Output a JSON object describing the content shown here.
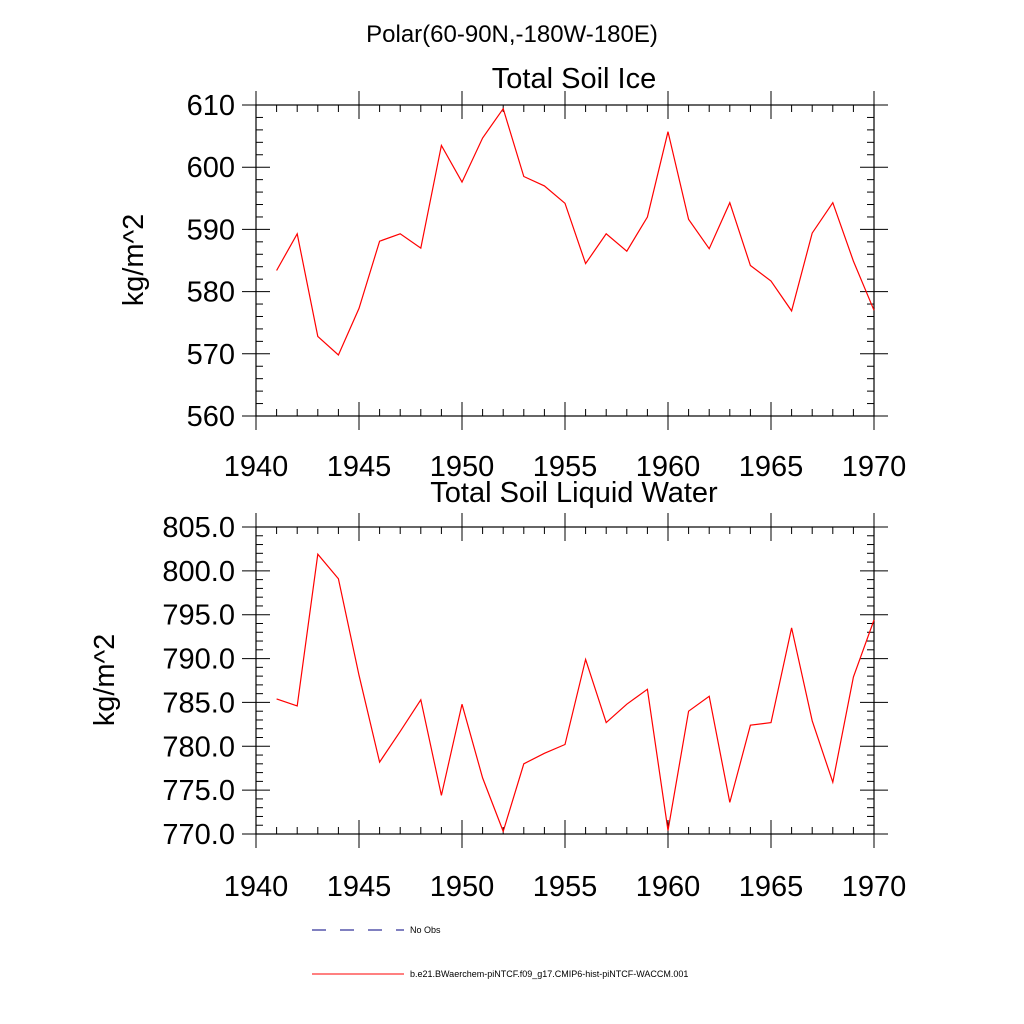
{
  "suptitle": "Polar(60-90N,-180W-180E)",
  "legend": {
    "items": [
      {
        "label": "No Obs",
        "color": "#000080",
        "dash": true
      },
      {
        "label": "b.e21.BWaerchem-piNTCF.f09_g17.CMIP6-hist-piNTCF-WACCM.001",
        "color": "#ff0000",
        "dash": false
      }
    ]
  },
  "chart_data": [
    {
      "type": "line",
      "title": "Total Soil Ice",
      "ylabel": "kg/m^2",
      "xlabel": "",
      "xlim": [
        1940,
        1970
      ],
      "ylim": [
        560,
        610
      ],
      "xticks": [
        1940,
        1945,
        1950,
        1955,
        1960,
        1965,
        1970
      ],
      "xtick_labels": [
        "1940",
        "1945",
        "1950",
        "1955",
        "1960",
        "1965",
        "1970"
      ],
      "yticks": [
        560,
        570,
        580,
        590,
        600,
        610
      ],
      "ytick_labels": [
        "560",
        "570",
        "580",
        "590",
        "600",
        "610"
      ],
      "grid": false,
      "series": [
        {
          "color": "#ff0000",
          "x": [
            1941,
            1942,
            1943,
            1944,
            1945,
            1946,
            1947,
            1948,
            1949,
            1950,
            1951,
            1952,
            1953,
            1954,
            1955,
            1956,
            1957,
            1958,
            1959,
            1960,
            1961,
            1962,
            1963,
            1964,
            1965,
            1966,
            1967,
            1968,
            1969,
            1970
          ],
          "y": [
            583.4,
            589.3,
            572.8,
            569.8,
            577.3,
            588.1,
            589.3,
            587.0,
            603.5,
            597.6,
            604.7,
            609.4,
            598.5,
            597.0,
            594.2,
            584.5,
            589.3,
            586.5,
            592.0,
            605.7,
            591.6,
            586.9,
            594.3,
            584.2,
            581.7,
            576.9,
            589.4,
            594.3,
            584.9,
            577.0
          ]
        }
      ]
    },
    {
      "type": "line",
      "title": "Total Soil Liquid Water",
      "ylabel": "kg/m^2",
      "xlabel": "",
      "xlim": [
        1940,
        1970
      ],
      "ylim": [
        770,
        805
      ],
      "xticks": [
        1940,
        1945,
        1950,
        1955,
        1960,
        1965,
        1970
      ],
      "xtick_labels": [
        "1940",
        "1945",
        "1950",
        "1955",
        "1960",
        "1965",
        "1970"
      ],
      "yticks": [
        770,
        775,
        780,
        785,
        790,
        795,
        800,
        805
      ],
      "ytick_labels": [
        "770.0",
        "775.0",
        "780.0",
        "785.0",
        "790.0",
        "795.0",
        "800.0",
        "805.0"
      ],
      "grid": false,
      "series": [
        {
          "color": "#ff0000",
          "x": [
            1941,
            1942,
            1943,
            1944,
            1945,
            1946,
            1947,
            1948,
            1949,
            1950,
            1951,
            1952,
            1953,
            1954,
            1955,
            1956,
            1957,
            1958,
            1959,
            1960,
            1961,
            1962,
            1963,
            1964,
            1965,
            1966,
            1967,
            1968,
            1969,
            1970
          ],
          "y": [
            785.4,
            784.6,
            801.9,
            799.1,
            788.1,
            778.2,
            781.7,
            785.3,
            774.4,
            784.8,
            776.4,
            770.3,
            778.0,
            779.2,
            780.2,
            789.9,
            782.7,
            784.8,
            786.5,
            770.4,
            784.0,
            785.7,
            773.6,
            782.4,
            782.7,
            793.5,
            782.9,
            775.9,
            787.9,
            794.4
          ]
        }
      ]
    }
  ]
}
